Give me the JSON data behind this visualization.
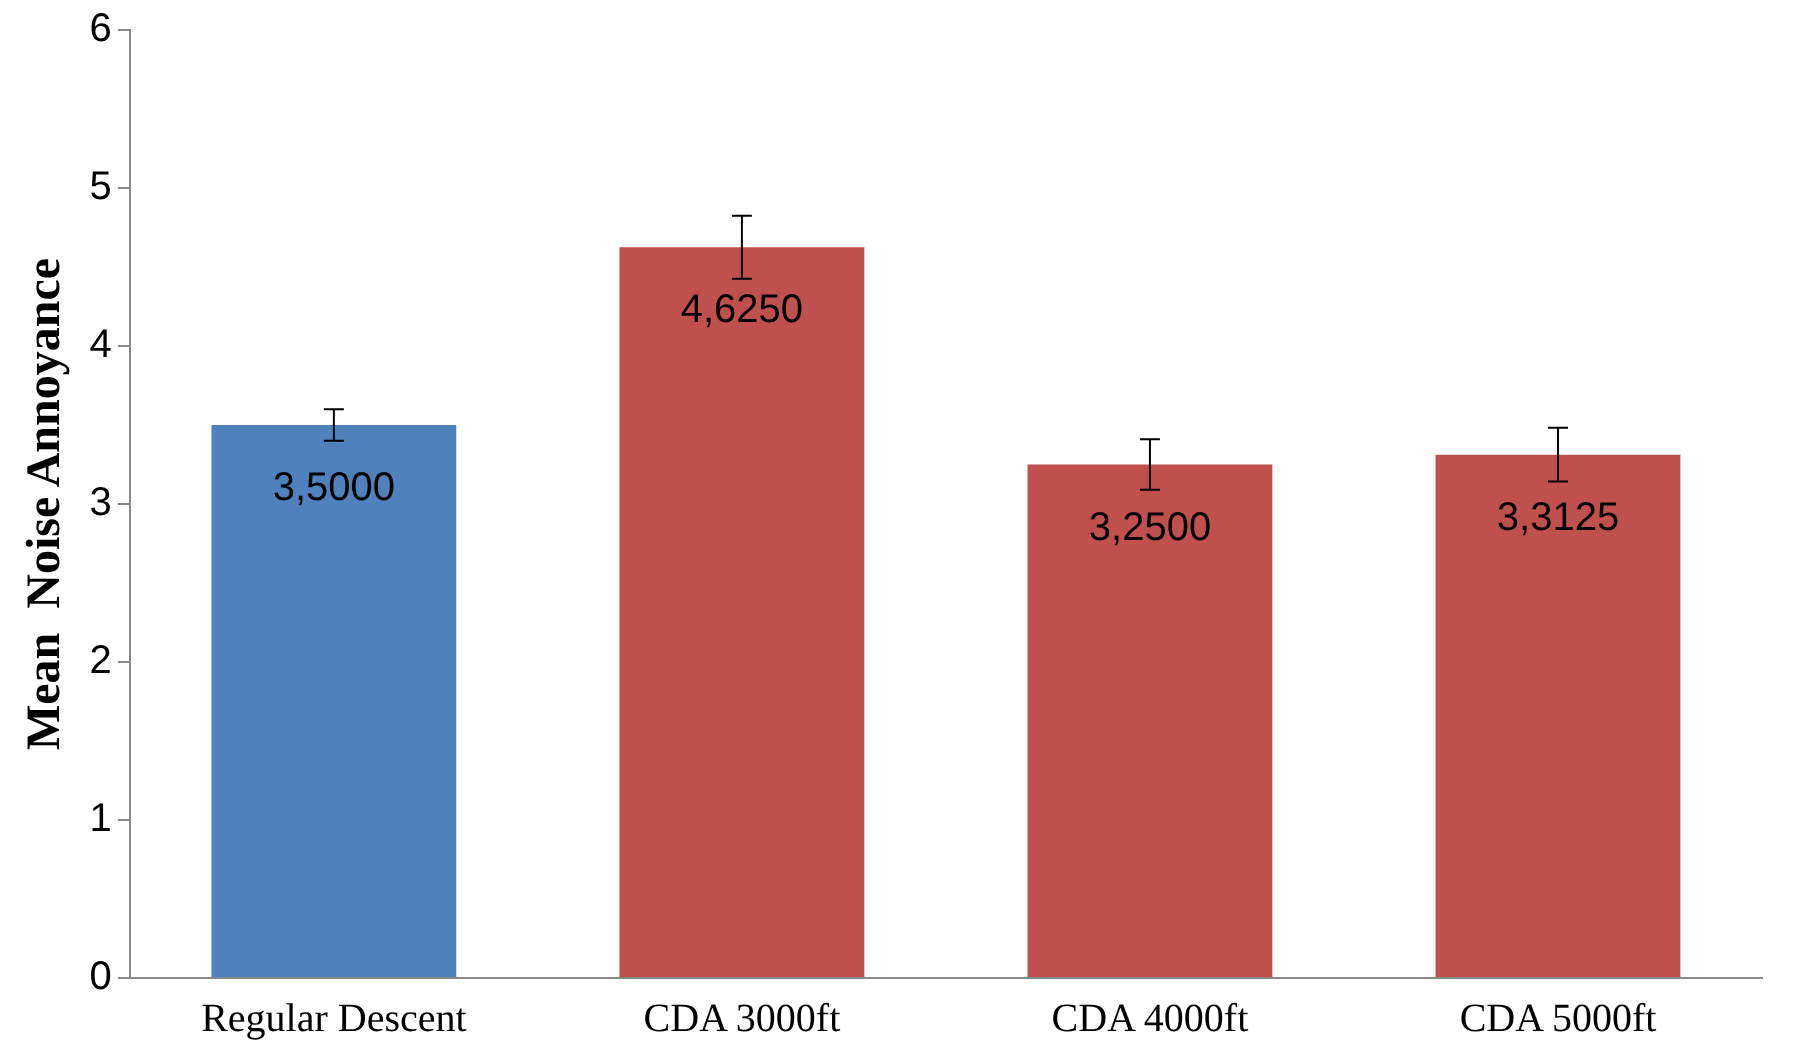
{
  "chart_data": {
    "type": "bar",
    "ylabel": "Mean  Noise Annoyance",
    "categories": [
      "Regular Descent",
      "CDA 3000ft",
      "CDA 4000ft",
      "CDA 5000ft"
    ],
    "values": [
      3.5,
      4.625,
      3.25,
      3.3125
    ],
    "colors": [
      "#4f81bd",
      "#c0504d",
      "#c0504d",
      "#c0504d"
    ],
    "errors": [
      0.1,
      0.2,
      0.16,
      0.17
    ],
    "value_labels": [
      "3,5000",
      "4,6250",
      "3,2500",
      "3,3125"
    ],
    "ylim": [
      0,
      6
    ],
    "yticks": [
      0,
      1,
      2,
      3,
      4,
      5,
      6
    ],
    "grid": false,
    "legend": false
  }
}
